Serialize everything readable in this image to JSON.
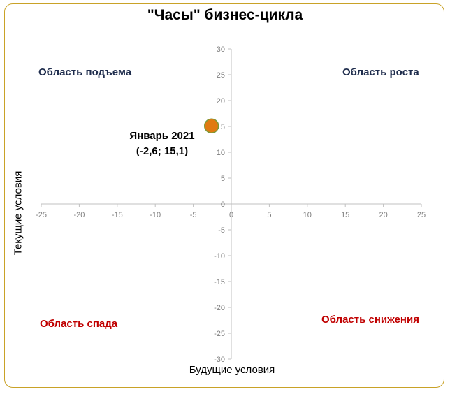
{
  "chart_data": {
    "type": "scatter",
    "title": "\"Часы\" бизнес-цикла",
    "xlabel": "Будущие условия",
    "ylabel": "Текущие условия",
    "xlim": [
      -25,
      25
    ],
    "ylim": [
      -30,
      30
    ],
    "x_ticks": [
      -25,
      -20,
      -15,
      -10,
      -5,
      0,
      5,
      10,
      15,
      20,
      25
    ],
    "y_ticks": [
      -30,
      -25,
      -20,
      -15,
      -10,
      -5,
      0,
      5,
      10,
      15,
      20,
      25,
      30
    ],
    "grid": false,
    "points": [
      {
        "x": -2.6,
        "y": 15.1,
        "label_line1": "Январь 2021",
        "label_line2": "(-2,6; 15,1)"
      }
    ],
    "quadrant_labels": {
      "top_left": "Область подъема",
      "top_right": "Область роста",
      "bottom_left": "Область спада",
      "bottom_right": "Область снижения"
    },
    "colors": {
      "point_fill": "#e07a12",
      "point_stroke": "#7a9a3a",
      "axis": "#c0c0c0",
      "tick_text": "#7f7f7f",
      "upper_quadrant_text": "#1f2d4d",
      "lower_quadrant_text": "#c00000",
      "frame_border": "#c9a227"
    }
  }
}
